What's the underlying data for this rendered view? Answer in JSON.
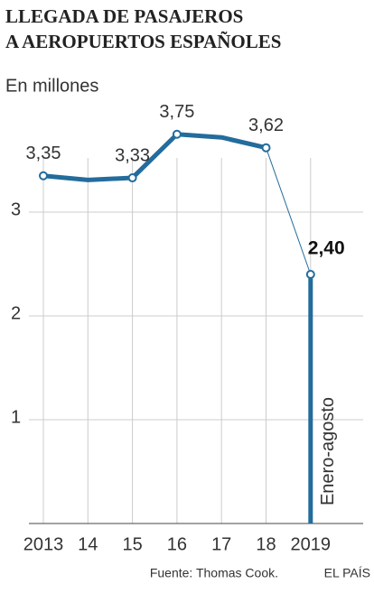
{
  "chart_data": {
    "type": "line",
    "title": [
      "LLEGADA DE PASAJEROS",
      "A AEROPUERTOS ESPAÑOLES"
    ],
    "subtitle": "En millones",
    "categories": [
      "2013",
      "14",
      "15",
      "16",
      "17",
      "18",
      "2019"
    ],
    "series": [
      {
        "color": "#236c9c",
        "values": [
          3.35,
          3.31,
          3.33,
          3.75,
          3.72,
          3.62,
          2.4
        ],
        "value_labels": [
          "3,35",
          null,
          "3,33",
          "3,75",
          null,
          "3,62",
          "2,40"
        ]
      }
    ],
    "annotation": "Enero-agosto",
    "ylim": [
      0,
      4
    ],
    "yticks": [
      1,
      2,
      3
    ],
    "grid": true,
    "source": "Fuente: Thomas Cook.",
    "credit": "EL PAÍS"
  }
}
